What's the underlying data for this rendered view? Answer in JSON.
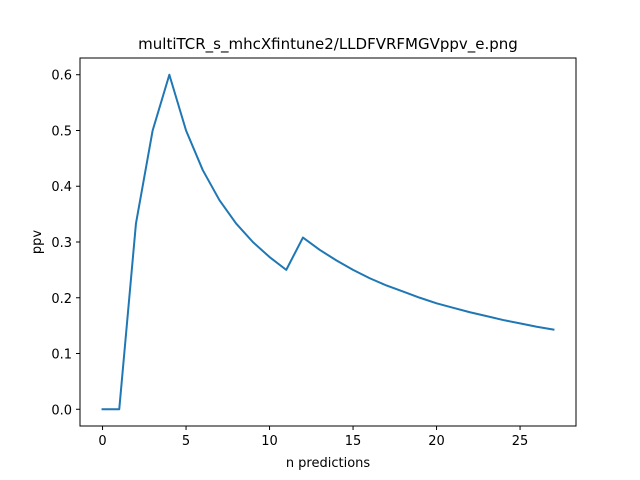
{
  "chart_data": {
    "type": "line",
    "title": "multiTCR_s_mhcXfintune2/LLDFVRFMGVppv_e.png",
    "xlabel": "n predictions",
    "ylabel": "ppv",
    "xlim": [
      -1.35,
      28.35
    ],
    "ylim": [
      -0.03,
      0.63
    ],
    "xticks": [
      0,
      5,
      10,
      15,
      20,
      25
    ],
    "yticks": [
      0.0,
      0.1,
      0.2,
      0.3,
      0.4,
      0.5,
      0.6
    ],
    "xtick_labels": [
      "0",
      "5",
      "10",
      "15",
      "20",
      "25"
    ],
    "ytick_labels": [
      "0.0",
      "0.1",
      "0.2",
      "0.3",
      "0.4",
      "0.5",
      "0.6"
    ],
    "grid": false,
    "series": [
      {
        "color": "#1f77b4",
        "x": [
          0,
          1,
          2,
          3,
          4,
          5,
          6,
          7,
          8,
          9,
          10,
          11,
          12,
          13,
          14,
          15,
          16,
          17,
          18,
          19,
          20,
          21,
          22,
          23,
          24,
          25,
          26,
          27
        ],
        "y": [
          0.0,
          0.0,
          0.333,
          0.5,
          0.6,
          0.5,
          0.429,
          0.375,
          0.333,
          0.3,
          0.273,
          0.25,
          0.308,
          0.286,
          0.267,
          0.25,
          0.235,
          0.222,
          0.211,
          0.2,
          0.19,
          0.182,
          0.174,
          0.167,
          0.16,
          0.154,
          0.148,
          0.143
        ]
      }
    ]
  }
}
